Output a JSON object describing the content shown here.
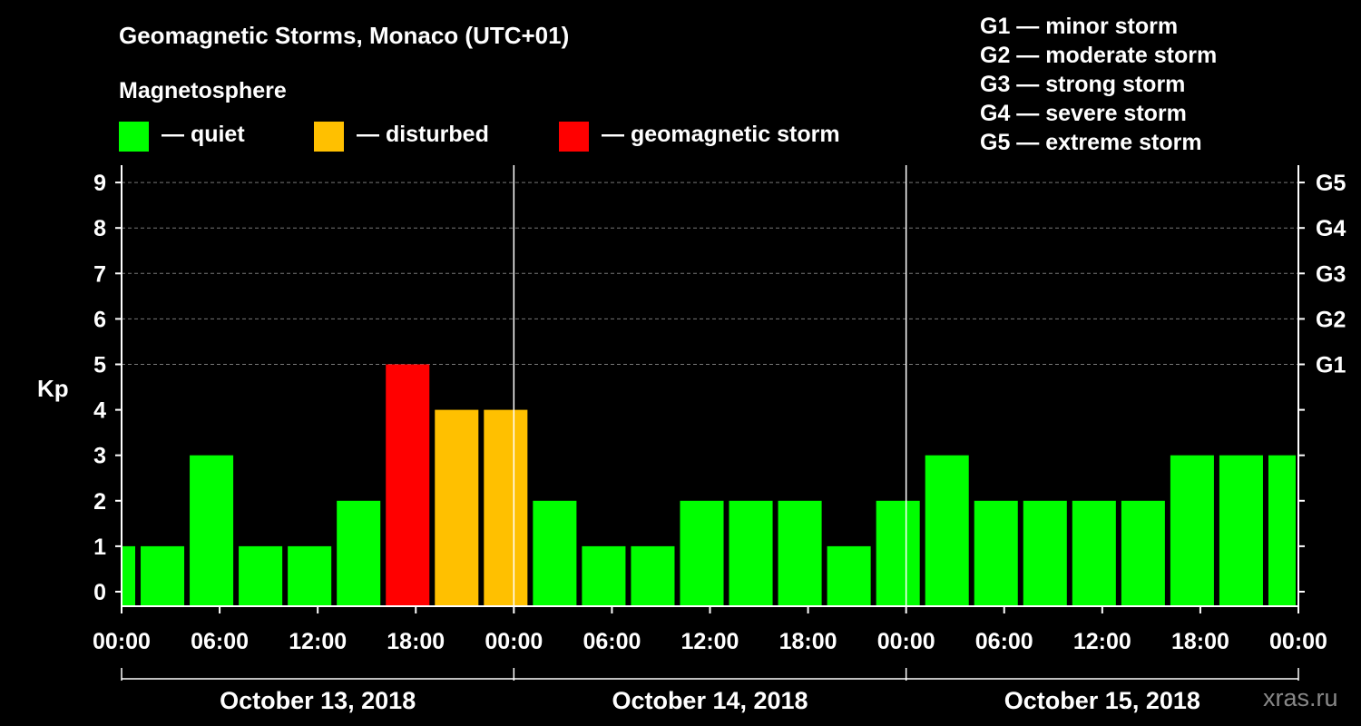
{
  "chart_data": {
    "type": "bar",
    "title": "Geomagnetic Storms, Monaco (UTC+01)",
    "subtitle": "Magnetosphere",
    "ylabel": "Kp",
    "ylim": [
      0,
      9
    ],
    "yticks": [
      "0",
      "1",
      "2",
      "3",
      "4",
      "5",
      "6",
      "7",
      "8",
      "9"
    ],
    "right_ticks": [
      {
        "kp": 5,
        "label": "G1"
      },
      {
        "kp": 6,
        "label": "G2"
      },
      {
        "kp": 7,
        "label": "G3"
      },
      {
        "kp": 8,
        "label": "G4"
      },
      {
        "kp": 9,
        "label": "G5"
      }
    ],
    "x_hours_total": 72,
    "x_tick_labels": [
      "00:00",
      "06:00",
      "12:00",
      "18:00",
      "00:00",
      "06:00",
      "12:00",
      "18:00",
      "00:00",
      "06:00",
      "12:00",
      "18:00",
      "00:00"
    ],
    "dates": [
      "October 13, 2018",
      "October 14, 2018",
      "October 15, 2018"
    ],
    "bars": [
      {
        "start_hour": 0,
        "end_hour": 1,
        "kp": 1,
        "status": "quiet"
      },
      {
        "start_hour": 1,
        "end_hour": 4,
        "kp": 1,
        "status": "quiet"
      },
      {
        "start_hour": 4,
        "end_hour": 7,
        "kp": 3,
        "status": "quiet"
      },
      {
        "start_hour": 7,
        "end_hour": 10,
        "kp": 1,
        "status": "quiet"
      },
      {
        "start_hour": 10,
        "end_hour": 13,
        "kp": 1,
        "status": "quiet"
      },
      {
        "start_hour": 13,
        "end_hour": 16,
        "kp": 2,
        "status": "quiet"
      },
      {
        "start_hour": 16,
        "end_hour": 19,
        "kp": 5,
        "status": "storm"
      },
      {
        "start_hour": 19,
        "end_hour": 22,
        "kp": 4,
        "status": "disturbed"
      },
      {
        "start_hour": 22,
        "end_hour": 25,
        "kp": 4,
        "status": "disturbed"
      },
      {
        "start_hour": 25,
        "end_hour": 28,
        "kp": 2,
        "status": "quiet"
      },
      {
        "start_hour": 28,
        "end_hour": 31,
        "kp": 1,
        "status": "quiet"
      },
      {
        "start_hour": 31,
        "end_hour": 34,
        "kp": 1,
        "status": "quiet"
      },
      {
        "start_hour": 34,
        "end_hour": 37,
        "kp": 2,
        "status": "quiet"
      },
      {
        "start_hour": 37,
        "end_hour": 40,
        "kp": 2,
        "status": "quiet"
      },
      {
        "start_hour": 40,
        "end_hour": 43,
        "kp": 2,
        "status": "quiet"
      },
      {
        "start_hour": 43,
        "end_hour": 46,
        "kp": 1,
        "status": "quiet"
      },
      {
        "start_hour": 46,
        "end_hour": 49,
        "kp": 2,
        "status": "quiet"
      },
      {
        "start_hour": 49,
        "end_hour": 52,
        "kp": 3,
        "status": "quiet"
      },
      {
        "start_hour": 52,
        "end_hour": 55,
        "kp": 2,
        "status": "quiet"
      },
      {
        "start_hour": 55,
        "end_hour": 58,
        "kp": 2,
        "status": "quiet"
      },
      {
        "start_hour": 58,
        "end_hour": 61,
        "kp": 2,
        "status": "quiet"
      },
      {
        "start_hour": 61,
        "end_hour": 64,
        "kp": 2,
        "status": "quiet"
      },
      {
        "start_hour": 64,
        "end_hour": 67,
        "kp": 3,
        "status": "quiet"
      },
      {
        "start_hour": 67,
        "end_hour": 70,
        "kp": 3,
        "status": "quiet"
      },
      {
        "start_hour": 70,
        "end_hour": 72,
        "kp": 3,
        "status": "quiet"
      }
    ],
    "colors": {
      "quiet": "#00ff00",
      "disturbed": "#ffc000",
      "storm": "#ff0000"
    }
  },
  "legend": {
    "quiet": "— quiet",
    "disturbed": "— disturbed",
    "storm": "— geomagnetic storm"
  },
  "g_levels": [
    "G1 — minor storm",
    "G2 — moderate storm",
    "G3 — strong storm",
    "G4 — severe storm",
    "G5 — extreme storm"
  ],
  "watermark": "xras.ru"
}
